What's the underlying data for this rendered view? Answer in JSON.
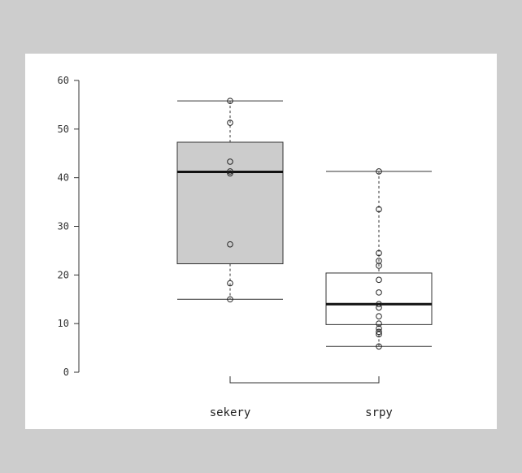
{
  "chart_data": {
    "type": "box",
    "title": "",
    "xlabel": "",
    "ylabel": "",
    "ylim": [
      0,
      60
    ],
    "yticks": [
      0,
      10,
      20,
      30,
      40,
      50,
      60
    ],
    "grid": false,
    "categories": [
      "sekery",
      "srpy"
    ],
    "boxes": [
      {
        "category": "sekery",
        "whisker_low": 15,
        "q1": 22.3,
        "median": 41.2,
        "q3": 47.3,
        "whisker_high": 55.8,
        "fill": "#cccccc",
        "points": [
          55.8,
          51.3,
          43.3,
          41.3,
          40.9,
          26.3,
          18.3,
          15.0
        ]
      },
      {
        "category": "srpy",
        "whisker_low": 5.3,
        "q1": 9.8,
        "median": 14.0,
        "q3": 20.4,
        "whisker_high": 41.3,
        "fill": "#ffffff",
        "points": [
          41.3,
          33.5,
          24.5,
          22.9,
          21.9,
          19.0,
          16.4,
          14.0,
          13.3,
          11.5,
          10.0,
          9.0,
          8.3,
          7.8,
          5.3
        ]
      }
    ]
  }
}
